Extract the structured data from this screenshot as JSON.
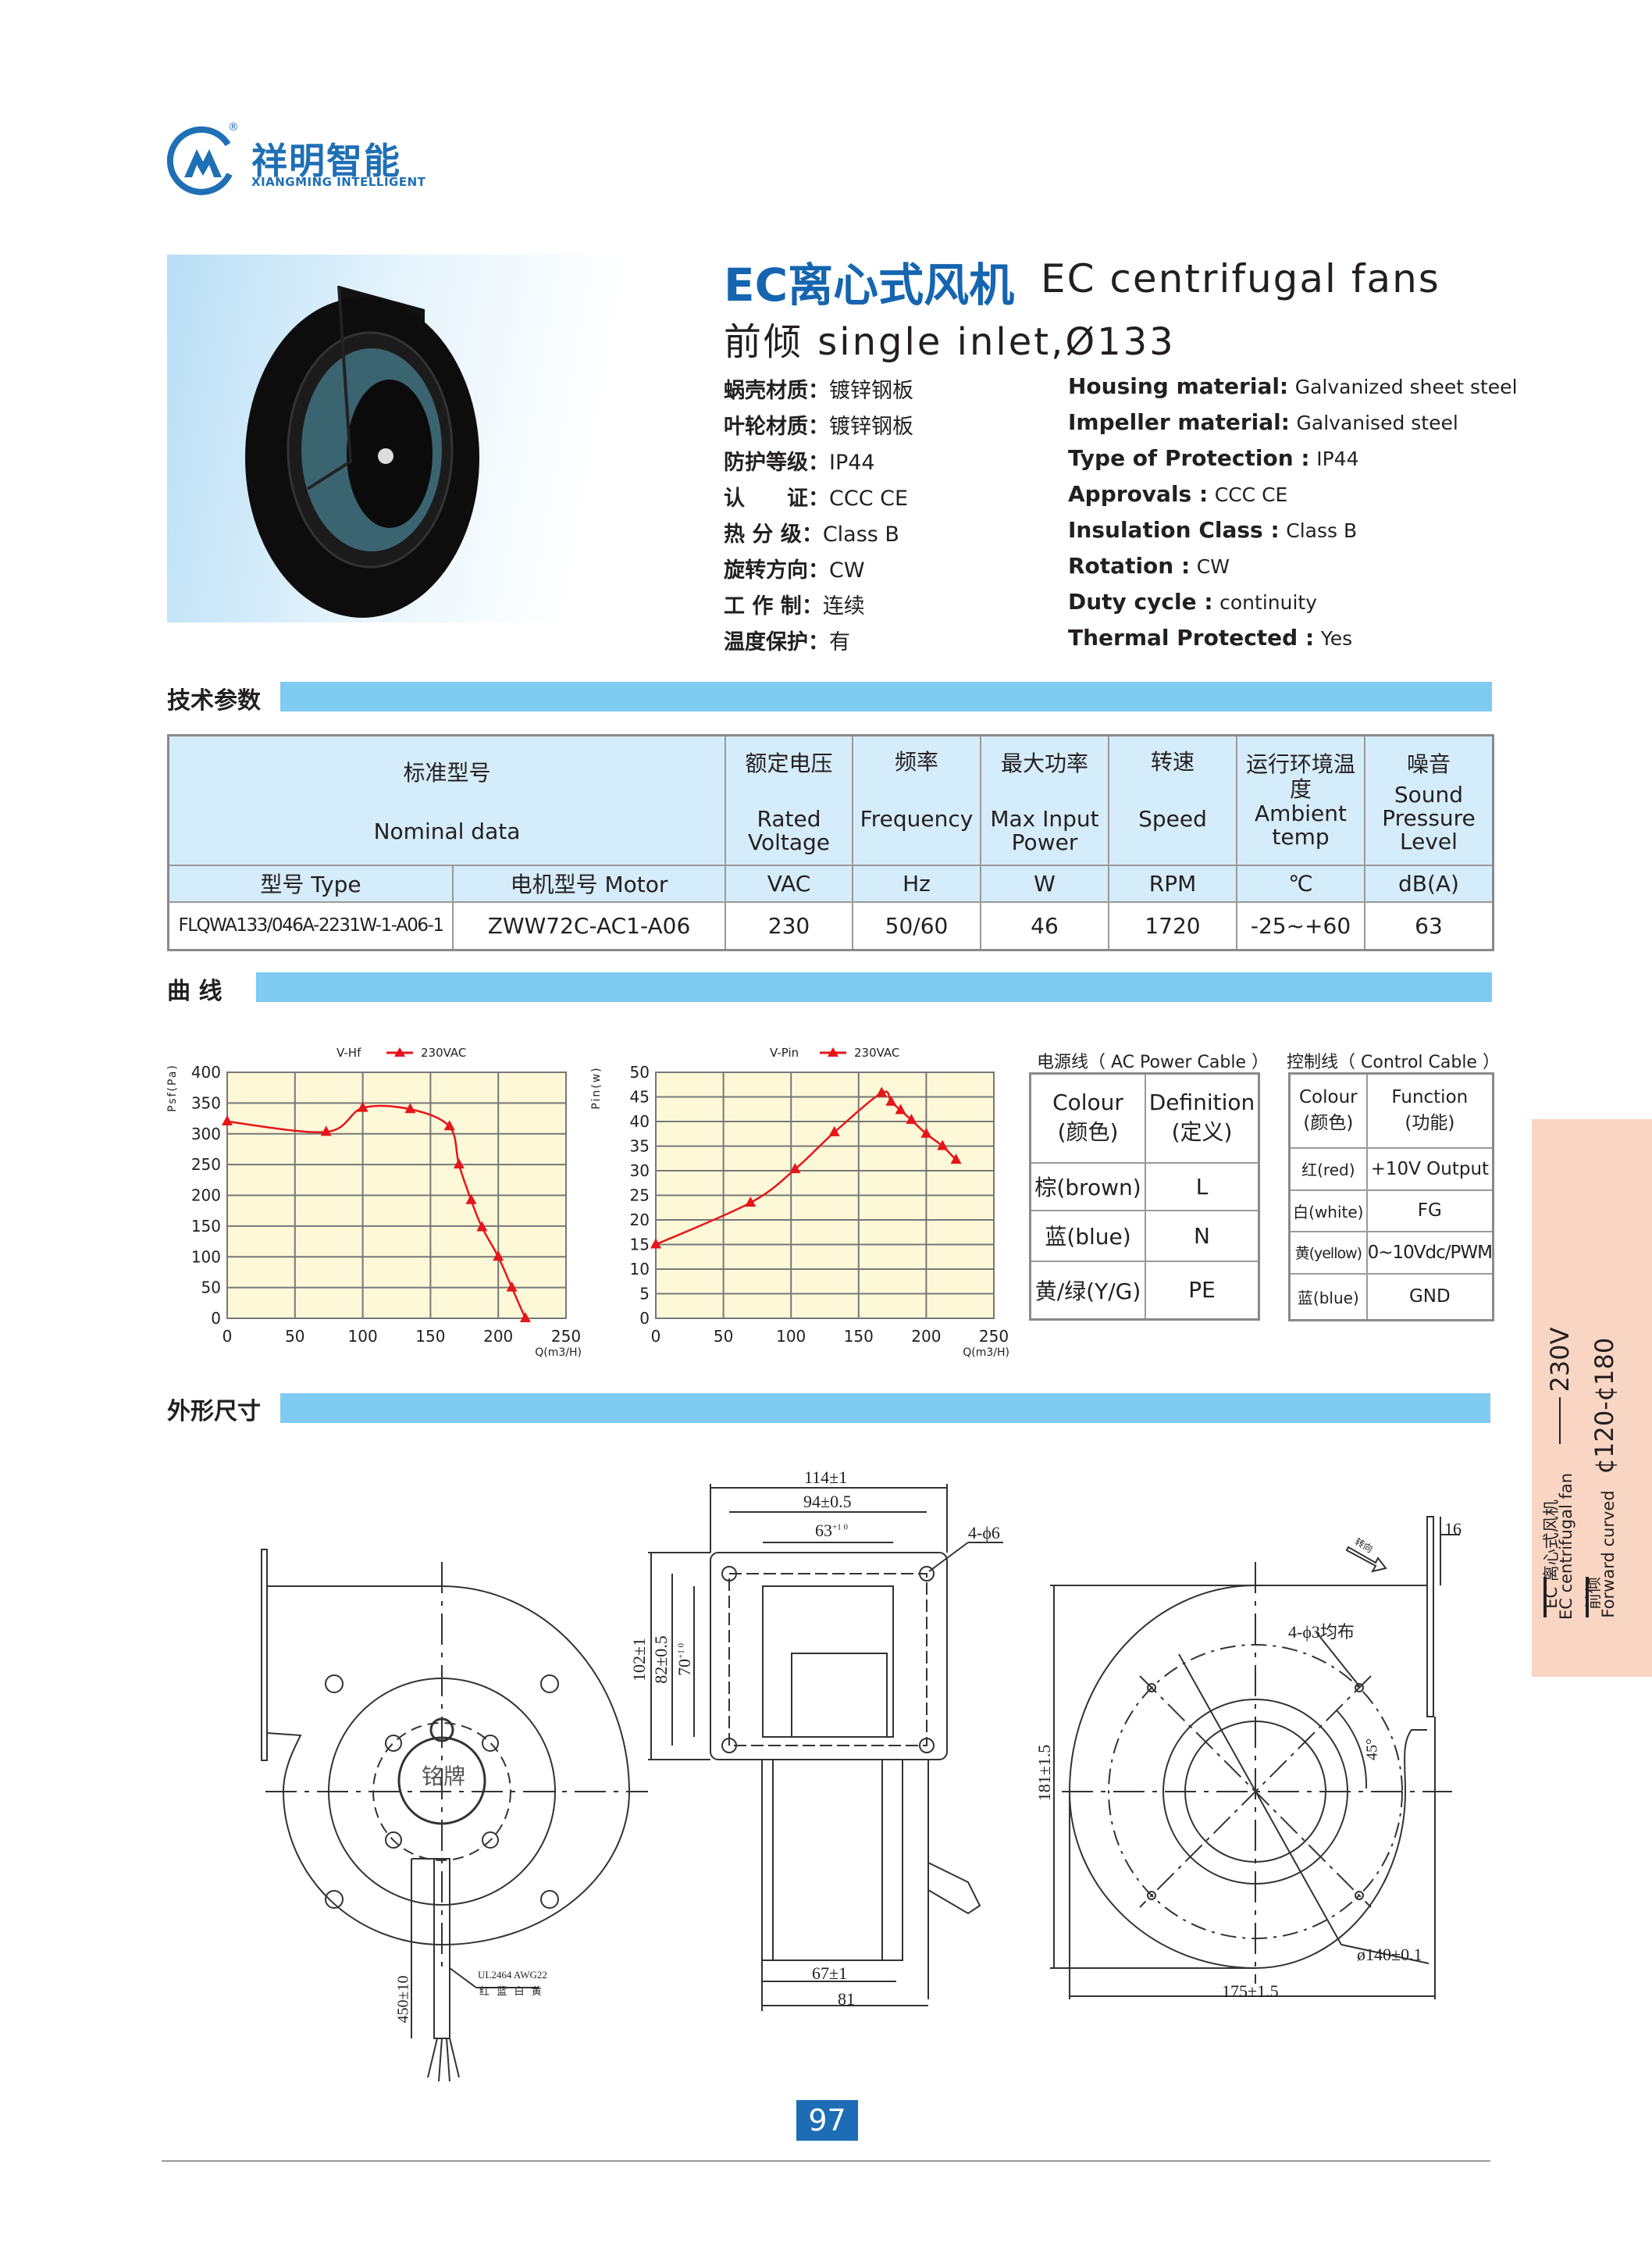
{
  "brand": {
    "name_cn": "祥明智能",
    "name_en": "XIANGMING INTELLIGENT",
    "registered": "®",
    "color": "#1f6fb5"
  },
  "header": {
    "title_cn": "EC离心式风机",
    "title_en": "EC centrifugal fans",
    "subtitle": "前倾  single inlet,Ø133"
  },
  "specs": [
    {
      "cn_label": "蜗壳材质",
      "cn_value": "镀锌钢板",
      "en_label": "Housing material:",
      "en_value": "Galvanized sheet steel"
    },
    {
      "cn_label": "叶轮材质",
      "cn_value": "镀锌钢板",
      "en_label": "Impeller material:",
      "en_value": "Galvanised steel"
    },
    {
      "cn_label": "防护等级",
      "cn_value": "IP44",
      "en_label": "Type of Protection :",
      "en_value": "IP44"
    },
    {
      "cn_label": "认　　证",
      "cn_value": "CCC  CE",
      "en_label": "Approvals :",
      "en_value": "CCC  CE"
    },
    {
      "cn_label": "热 分 级",
      "cn_value": "Class  B",
      "en_label": "Insulation Class :",
      "en_value": "Class  B"
    },
    {
      "cn_label": "旋转方向",
      "cn_value": "CW",
      "en_label": "Rotation :",
      "en_value": "CW"
    },
    {
      "cn_label": "工 作 制",
      "cn_value": "连续",
      "en_label": "Duty cycle :",
      "en_value": "continuity"
    },
    {
      "cn_label": "温度保护",
      "cn_value": "有",
      "en_label": "Thermal  Protected :",
      "en_value": "Yes"
    }
  ],
  "spec_colon": "：",
  "sections": {
    "tech": "技术参数",
    "curves": "曲  线",
    "dimensions": "外形尺寸"
  },
  "section_bar_color": "#7fcbf2",
  "tech_table": {
    "header": {
      "nominal_cn": "标准型号",
      "nominal_en": "Nominal  data",
      "columns": [
        {
          "cn": "额定电压",
          "en": "Rated Voltage",
          "unit": "VAC"
        },
        {
          "cn": "频率",
          "en": "Frequency",
          "unit": "Hz"
        },
        {
          "cn": "最大功率",
          "en": "Max Input Power",
          "unit": "W"
        },
        {
          "cn": "转速",
          "en": "Speed",
          "unit": "RPM"
        },
        {
          "cn": "运行环境温度",
          "en": "Ambient temp",
          "unit": "℃"
        },
        {
          "cn": "噪音",
          "en": "Sound Pressure Level",
          "unit": "dB(A)"
        }
      ],
      "type_label": "型号  Type",
      "motor_label": "电机型号  Motor"
    },
    "rows": [
      {
        "type": "FLQWA133/046A-2231W-1-A06-1",
        "motor": "ZWW72C-AC1-A06",
        "values": [
          "230",
          "50/60",
          "46",
          "1720",
          "-25~+60",
          "63"
        ]
      }
    ]
  },
  "chart_data": [
    {
      "type": "line",
      "title": "V-Hf",
      "series": [
        {
          "name": "230VAC",
          "color": "#e8141b",
          "marker": "triangle",
          "x": [
            0,
            73,
            100,
            135,
            164,
            171,
            180,
            188,
            200,
            210,
            220
          ],
          "y": [
            320,
            303,
            342,
            340,
            312,
            250,
            192,
            148,
            100,
            50,
            0
          ]
        }
      ],
      "xlabel": "Q(m3/H)",
      "ylabel": "Psf(Pa)",
      "xlim": [
        0,
        250
      ],
      "ylim": [
        0,
        400
      ],
      "xticks": [
        0,
        50,
        100,
        150,
        200,
        250
      ],
      "yticks": [
        0,
        50,
        100,
        150,
        200,
        250,
        300,
        350,
        400
      ],
      "grid": true,
      "legend": "top",
      "background": "#fdf8d8"
    },
    {
      "type": "line",
      "title": "V-Pin",
      "series": [
        {
          "name": "230VAC",
          "color": "#e8141b",
          "marker": "triangle",
          "x": [
            0,
            70,
            103,
            132,
            167,
            174,
            181,
            189,
            200,
            212,
            222
          ],
          "y": [
            15,
            23.5,
            30.3,
            37.8,
            45.8,
            44,
            42.3,
            40.3,
            37.5,
            35,
            32.2
          ]
        }
      ],
      "xlabel": "Q(m3/H)",
      "ylabel": "Pin(w)",
      "xlim": [
        0,
        250
      ],
      "ylim": [
        0,
        50
      ],
      "xticks": [
        0,
        50,
        100,
        150,
        200,
        250
      ],
      "yticks": [
        0,
        5,
        10,
        15,
        20,
        25,
        30,
        35,
        40,
        45,
        50
      ],
      "grid": true,
      "legend": "top",
      "background": "#fdf8d8"
    }
  ],
  "ac_cable": {
    "title": "电源线（ AC Power Cable ）",
    "headers": [
      [
        "Colour",
        "(颜色)"
      ],
      [
        "Definition",
        "(定义)"
      ]
    ],
    "rows": [
      [
        "棕(brown)",
        "L"
      ],
      [
        "蓝(blue)",
        "N"
      ],
      [
        "黄/绿(Y/G)",
        "PE"
      ]
    ]
  },
  "control_cable": {
    "title": "控制线（ Control Cable ）",
    "headers": [
      [
        "Colour",
        "(颜色)"
      ],
      [
        "Function",
        "(功能)"
      ]
    ],
    "rows": [
      [
        "红(red)",
        "+10V Output"
      ],
      [
        "白(white)",
        "FG"
      ],
      [
        "黄(yellow)",
        "0~10Vdc/PWM"
      ],
      [
        "蓝(blue)",
        "GND"
      ]
    ]
  },
  "side_tab": {
    "line1_cn": "EC 离心式风机",
    "line1_en": "EC centrifugal fan",
    "line2_cn": "前倾",
    "line2_en": "Forward curved",
    "voltage": "230V",
    "range": "¢120-¢180",
    "color": "#f9d6c3"
  },
  "drawing": {
    "nameplate": "铭牌",
    "cable_spec": "UL2464  AWG22",
    "cable_colors": "红 蓝 白 黄",
    "cable_length": "450±10",
    "dim_114": "114±1",
    "dim_94": "94±0.5",
    "dim_63": "63",
    "dim_63_tol": "+1 0",
    "dim_102": "102±1",
    "dim_82": "82±0.5",
    "dim_70": "70",
    "dim_70_tol": "+1 0",
    "holes_6": "4-ϕ6",
    "dim_67": "67±1",
    "dim_81": "81",
    "dim_16": "16",
    "rotation": "转向",
    "holes_3": "4-ϕ3均布",
    "angle": "45°",
    "dim_181": "181±1.5",
    "dim_175": "175±1.5",
    "dim_140": "ø140±0.1"
  },
  "page_number": "97"
}
